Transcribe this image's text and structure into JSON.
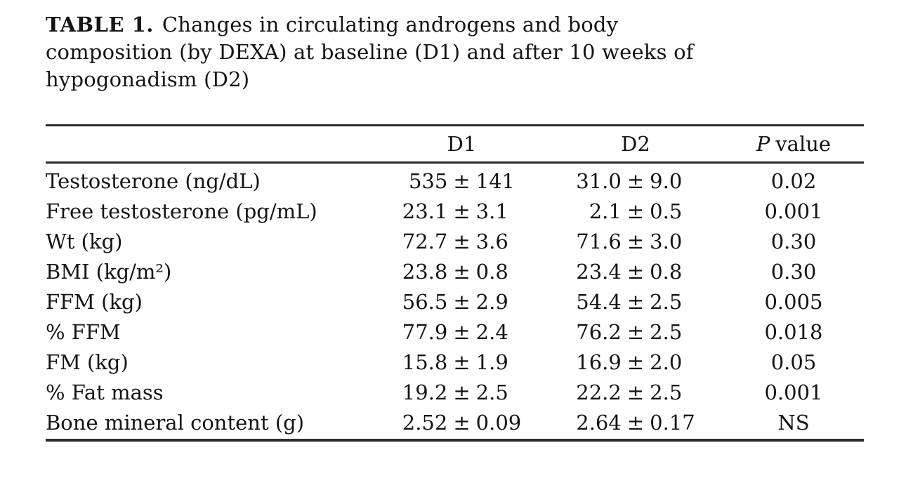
{
  "caption": {
    "label": "TABLE 1.",
    "line1": "Changes in circulating androgens and body",
    "line2": "composition (by DEXA) at baseline (D1) and after 10 weeks of",
    "line3": "hypogonadism (D2)"
  },
  "table": {
    "pm": "±",
    "header": {
      "d1": "D1",
      "d2": "D2",
      "p_italic": "P",
      "p_rest": "value"
    },
    "rows": [
      {
        "label": "Testosterone (ng/dL)",
        "d1_val": "535",
        "d1_err": "141",
        "d2_val": "31.0",
        "d2_err": "9.0",
        "p": "0.02"
      },
      {
        "label": "Free testosterone (pg/mL)",
        "d1_val": "23.1",
        "d1_err": "3.1",
        "d2_val": "2.1",
        "d2_err": "0.5",
        "p": "0.001"
      },
      {
        "label": "Wt (kg)",
        "d1_val": "72.7",
        "d1_err": "3.6",
        "d2_val": "71.6",
        "d2_err": "3.0",
        "p": "0.30"
      },
      {
        "label": "BMI (kg/m²)",
        "d1_val": "23.8",
        "d1_err": "0.8",
        "d2_val": "23.4",
        "d2_err": "0.8",
        "p": "0.30"
      },
      {
        "label": "FFM (kg)",
        "d1_val": "56.5",
        "d1_err": "2.9",
        "d2_val": "54.4",
        "d2_err": "2.5",
        "p": "0.005"
      },
      {
        "label": "% FFM",
        "d1_val": "77.9",
        "d1_err": "2.4",
        "d2_val": "76.2",
        "d2_err": "2.5",
        "p": "0.018"
      },
      {
        "label": "FM (kg)",
        "d1_val": "15.8",
        "d1_err": "1.9",
        "d2_val": "16.9",
        "d2_err": "2.0",
        "p": "0.05"
      },
      {
        "label": "% Fat mass",
        "d1_val": "19.2",
        "d1_err": "2.5",
        "d2_val": "22.2",
        "d2_err": "2.5",
        "p": "0.001"
      },
      {
        "label": "Bone mineral content (g)",
        "d1_val": "2.52",
        "d1_err": "0.09",
        "d2_val": "2.64",
        "d2_err": "0.17",
        "p": "NS"
      }
    ]
  }
}
